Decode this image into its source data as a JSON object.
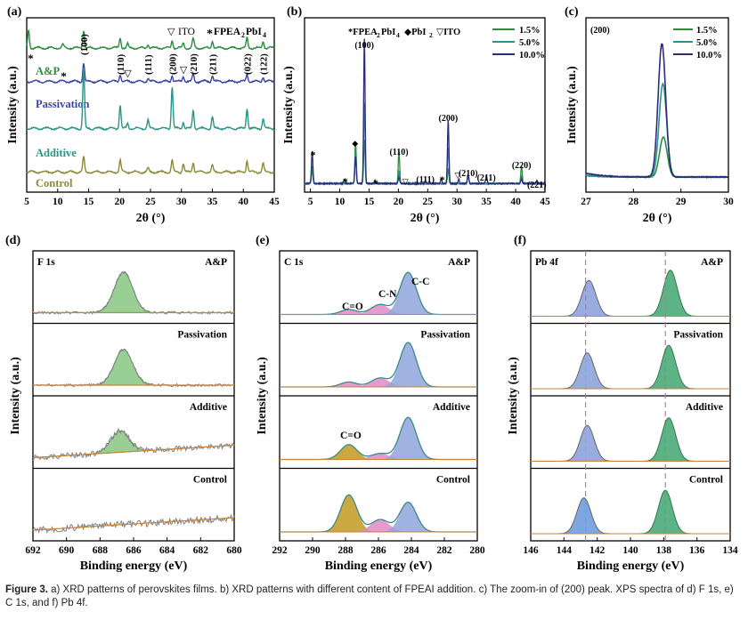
{
  "colors": {
    "ap": "#2e8b3e",
    "passivation": "#3a44a0",
    "additive": "#2a9486",
    "control": "#8a8a3a",
    "s15": "#2e8b3e",
    "s50": "#2a9486",
    "s100": "#2c2c7a",
    "fit": "#3a8a8a",
    "bg_line": "#c8843c",
    "raw": "#808080",
    "fill_green": "#8fc98a",
    "fill_blue": "#8fa4dc",
    "fill_pink": "#e08ac8",
    "fill_gold": "#c39a1e",
    "fill_pb_green": "#4dab7a",
    "fill_pb_blue": "#6f9de0",
    "dashed": "#d46aa8"
  },
  "caption": {
    "label": "Figure 3.",
    "text": " a) XRD patterns of perovskites films. b) XRD patterns with different content of FPEAI addition. c) The zoom-in of (200) peak. XPS spectra of d) F 1s, e) C 1s, and f) Pb 4f."
  },
  "chart_data": [
    {
      "panel": "(a)",
      "type": "line",
      "xlabel": "2θ (°)",
      "ylabel": "Intensity (a.u.)",
      "xlim": [
        5,
        45
      ],
      "xticks": [
        5,
        10,
        15,
        20,
        25,
        30,
        35,
        40,
        45
      ],
      "legend": [
        {
          "marker": "▽",
          "label": "ITO"
        },
        {
          "marker": "*",
          "label": "FPEA2PbI4"
        }
      ],
      "peak_labels": [
        "(100)",
        "(110)",
        "(111)",
        "(200)",
        "(210)",
        "(211)",
        "(022)",
        "(122)"
      ],
      "peak_positions": [
        14.2,
        20.1,
        24.6,
        28.5,
        31.9,
        35.0,
        40.6,
        43.2
      ],
      "series": [
        {
          "name": "A&P",
          "color_key": "ap",
          "baseline_level": 4.0,
          "peaks": [
            [
              5.3,
              0.55
            ],
            [
              10.8,
              0.1
            ],
            [
              14.2,
              0.55
            ],
            [
              20.1,
              0.3
            ],
            [
              21.3,
              0.12
            ],
            [
              24.6,
              0.12
            ],
            [
              28.5,
              0.22
            ],
            [
              30.3,
              0.15
            ],
            [
              31.9,
              0.28
            ],
            [
              35.0,
              0.22
            ],
            [
              40.6,
              0.3
            ],
            [
              43.2,
              0.2
            ]
          ]
        },
        {
          "name": "Passivation",
          "color_key": "passivation",
          "baseline_level": 3.0,
          "peaks": [
            [
              14.2,
              0.55
            ],
            [
              20.1,
              0.22
            ],
            [
              24.6,
              0.1
            ],
            [
              28.5,
              0.18
            ],
            [
              30.3,
              0.15
            ],
            [
              31.9,
              0.22
            ],
            [
              35.0,
              0.18
            ],
            [
              40.6,
              0.22
            ],
            [
              43.2,
              0.15
            ]
          ]
        },
        {
          "name": "Additive",
          "color_key": "additive",
          "baseline_level": 1.6,
          "peaks": [
            [
              14.2,
              1.8
            ],
            [
              20.1,
              0.7
            ],
            [
              21.3,
              0.15
            ],
            [
              24.6,
              0.25
            ],
            [
              28.5,
              1.25
            ],
            [
              30.3,
              0.2
            ],
            [
              31.9,
              0.55
            ],
            [
              35.0,
              0.35
            ],
            [
              40.6,
              0.6
            ],
            [
              43.2,
              0.3
            ]
          ]
        },
        {
          "name": "Control",
          "color_key": "control",
          "baseline_level": 0.3,
          "peaks": [
            [
              14.2,
              0.45
            ],
            [
              20.1,
              0.35
            ],
            [
              24.6,
              0.12
            ],
            [
              28.5,
              0.35
            ],
            [
              30.3,
              0.25
            ],
            [
              31.9,
              0.3
            ],
            [
              35.0,
              0.2
            ],
            [
              40.6,
              0.35
            ],
            [
              43.2,
              0.25
            ]
          ]
        }
      ]
    },
    {
      "panel": "(b)",
      "type": "line",
      "xlabel": "2θ (°)",
      "ylabel": "Intensity (a.u.)",
      "xlim": [
        4,
        45
      ],
      "xticks": [
        5,
        10,
        15,
        20,
        25,
        30,
        35,
        40,
        45
      ],
      "legend_markers": [
        {
          "marker": "*",
          "label": "FPEA2PbI4"
        },
        {
          "marker": "◆",
          "label": "PbI2"
        },
        {
          "marker": "▽",
          "label": "ITO"
        }
      ],
      "peak_labels": [
        {
          "text": "(100)",
          "x": 14.2
        },
        {
          "text": "(110)",
          "x": 20.1
        },
        {
          "text": "(111)",
          "x": 24.6
        },
        {
          "text": "(200)",
          "x": 28.5
        },
        {
          "text": "(210)",
          "x": 31.9
        },
        {
          "text": "(211)",
          "x": 35.0
        },
        {
          "text": "(220)",
          "x": 41.0
        },
        {
          "text": "(221)",
          "x": 43.6
        }
      ],
      "series": [
        {
          "name": "1.5%",
          "color_key": "s15",
          "peaks": [
            [
              5.3,
              0.1
            ],
            [
              12.7,
              0.28
            ],
            [
              14.2,
              0.3
            ],
            [
              20.1,
              0.22
            ],
            [
              28.5,
              0.1
            ],
            [
              31.9,
              0.05
            ],
            [
              41.0,
              0.12
            ]
          ]
        },
        {
          "name": "5.0%",
          "color_key": "s50",
          "peaks": [
            [
              5.3,
              0.12
            ],
            [
              12.7,
              0.2
            ],
            [
              14.2,
              0.55
            ],
            [
              20.1,
              0.08
            ],
            [
              28.5,
              0.25
            ],
            [
              31.9,
              0.06
            ],
            [
              41.0,
              0.05
            ]
          ]
        },
        {
          "name": "10.0%",
          "color_key": "s100",
          "peaks": [
            [
              5.3,
              0.22
            ],
            [
              10.8,
              0.03
            ],
            [
              12.7,
              0.18
            ],
            [
              14.2,
              0.98
            ],
            [
              16.0,
              0.02
            ],
            [
              20.1,
              0.04
            ],
            [
              24.6,
              0.02
            ],
            [
              27.3,
              0.03
            ],
            [
              28.5,
              0.43
            ],
            [
              30.3,
              0.03
            ],
            [
              31.9,
              0.06
            ],
            [
              35.0,
              0.05
            ],
            [
              41.0,
              0.03
            ],
            [
              43.6,
              0.02
            ]
          ]
        }
      ]
    },
    {
      "panel": "(c)",
      "type": "line",
      "title": "(200)",
      "xlabel": "2θ (°)",
      "ylabel": "Intensity (a.u.)",
      "xlim": [
        27,
        30
      ],
      "xticks": [
        27,
        28,
        29,
        30
      ],
      "series": [
        {
          "name": "1.5%",
          "color_key": "s15",
          "center": 28.63,
          "height": 0.3
        },
        {
          "name": "5.0%",
          "color_key": "s50",
          "center": 28.62,
          "height": 0.7
        },
        {
          "name": "10.0%",
          "color_key": "s100",
          "center": 28.6,
          "height": 1.0
        }
      ]
    },
    {
      "panel": "(d)",
      "type": "line",
      "title": "F 1s",
      "xlabel": "Binding energy (eV)",
      "ylabel": "Intensity (a.u.)",
      "xlim": [
        692,
        680
      ],
      "xticks": [
        692,
        690,
        688,
        686,
        684,
        682,
        680
      ],
      "series": [
        {
          "name": "A&P",
          "peak": 686.6,
          "height": 0.85
        },
        {
          "name": "Passivation",
          "peak": 686.6,
          "height": 0.75
        },
        {
          "name": "Additive",
          "peak": 686.8,
          "height": 0.45
        },
        {
          "name": "Control",
          "peak": null,
          "height": 0
        }
      ]
    },
    {
      "panel": "(e)",
      "type": "line",
      "title": "C 1s",
      "xlabel": "Binding energy (eV)",
      "ylabel": "Intensity (a.u.)",
      "xlim": [
        292,
        280
      ],
      "xticks": [
        292,
        290,
        288,
        286,
        284,
        282,
        280
      ],
      "peak_names": [
        "C=O",
        "C-N",
        "C-C"
      ],
      "peak_positions": [
        287.8,
        285.9,
        284.2
      ],
      "series": [
        {
          "name": "A&P",
          "heights": [
            0.1,
            0.2,
            0.85
          ]
        },
        {
          "name": "Passivation",
          "heights": [
            0.1,
            0.18,
            0.9
          ]
        },
        {
          "name": "Additive",
          "heights": [
            0.3,
            0.12,
            0.85
          ]
        },
        {
          "name": "Control",
          "heights": [
            0.75,
            0.25,
            0.6
          ]
        }
      ]
    },
    {
      "panel": "(f)",
      "type": "line",
      "title": "Pb 4f",
      "xlabel": "Binding energy (eV)",
      "ylabel": "Intensity (a.u.)",
      "xlim": [
        146,
        134
      ],
      "xticks": [
        146,
        144,
        142,
        140,
        138,
        136,
        134
      ],
      "reference_lines": [
        142.7,
        137.9
      ],
      "series": [
        {
          "name": "A&P",
          "peaks": [
            142.5,
            137.6
          ],
          "heights": [
            0.7,
            0.9
          ]
        },
        {
          "name": "Passivation",
          "peaks": [
            142.6,
            137.7
          ],
          "heights": [
            0.7,
            0.85
          ]
        },
        {
          "name": "Additive",
          "peaks": [
            142.6,
            137.7
          ],
          "heights": [
            0.7,
            0.85
          ]
        },
        {
          "name": "Control",
          "peaks": [
            142.8,
            137.9
          ],
          "heights": [
            0.7,
            0.85
          ]
        }
      ]
    }
  ]
}
